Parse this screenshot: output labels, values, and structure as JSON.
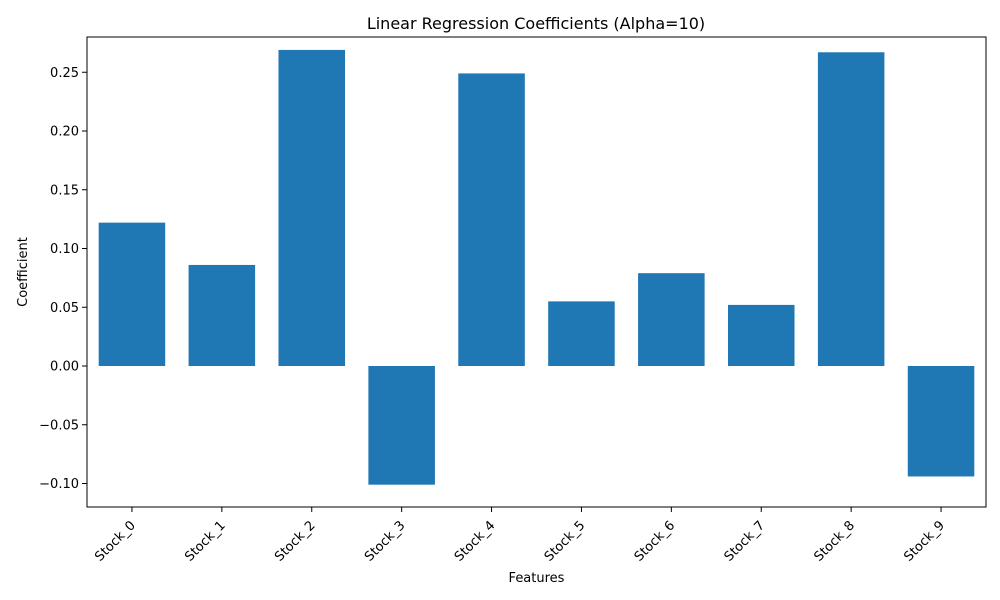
{
  "chart_data": {
    "type": "bar",
    "title": "Linear Regression Coefficients (Alpha=10)",
    "xlabel": "Features",
    "ylabel": "Coefficient",
    "categories": [
      "Stock_0",
      "Stock_1",
      "Stock_2",
      "Stock_3",
      "Stock_4",
      "Stock_5",
      "Stock_6",
      "Stock_7",
      "Stock_8",
      "Stock_9"
    ],
    "values": [
      0.122,
      0.086,
      0.269,
      -0.101,
      0.249,
      0.055,
      0.079,
      0.052,
      0.267,
      -0.094
    ],
    "ylim": [
      -0.12,
      0.28
    ],
    "yticks": [
      -0.1,
      -0.05,
      0.0,
      0.05,
      0.1,
      0.15,
      0.2,
      0.25
    ],
    "ytick_labels": [
      "−0.10",
      "−0.05",
      "0.00",
      "0.05",
      "0.10",
      "0.15",
      "0.20",
      "0.25"
    ],
    "bar_color": "#1f77b4",
    "grid": false,
    "legend": false
  }
}
